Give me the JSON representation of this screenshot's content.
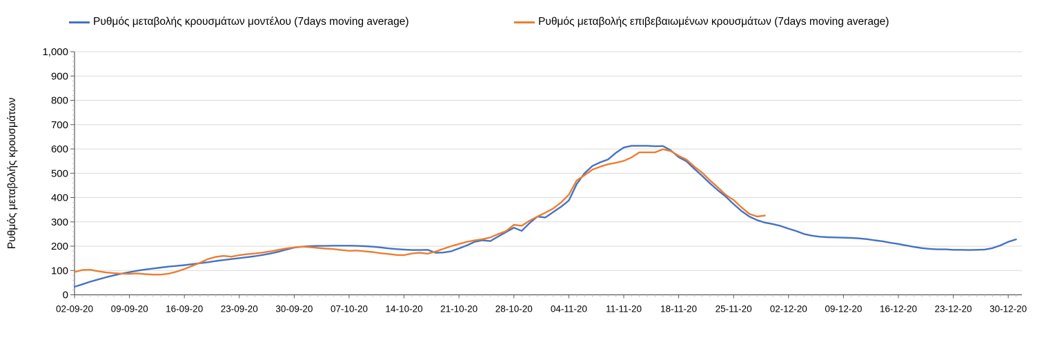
{
  "chart_data": {
    "type": "line",
    "title": "",
    "xlabel": "",
    "ylabel": "Ρυθμός μεταβολής κρουσμάτων",
    "ylim": [
      0,
      1000
    ],
    "grid": "horizontal",
    "legend_position": "top",
    "x_frequency": "daily",
    "x_start_date": "02-09-20",
    "x_tick_labels": [
      "02-09-20",
      "09-09-20",
      "16-09-20",
      "23-09-20",
      "30-09-20",
      "07-10-20",
      "14-10-20",
      "21-10-20",
      "28-10-20",
      "04-11-20",
      "11-11-20",
      "18-11-20",
      "25-11-20",
      "02-12-20",
      "09-12-20",
      "16-12-20",
      "23-12-20",
      "30-12-20"
    ],
    "x_ticks_every_days": 7,
    "y_tick_values": [
      0,
      100,
      200,
      300,
      400,
      500,
      600,
      700,
      800,
      900,
      1000
    ],
    "y_tick_labels": [
      "0",
      "100",
      "200",
      "300",
      "400",
      "500",
      "600",
      "700",
      "800",
      "900",
      "1,000"
    ],
    "series": [
      {
        "name": "Ρυθμός μεταβολής κρουσμάτων μοντέλου (7days moving average)",
        "color": "#4472C4",
        "start_date": "02-09-20",
        "end_date": "31-12-20",
        "values": [
          33,
          43,
          54,
          63,
          72,
          80,
          87,
          93,
          99,
          104,
          108,
          112,
          116,
          119,
          122,
          126,
          130,
          134,
          139,
          143,
          147,
          151,
          155,
          159,
          164,
          170,
          177,
          186,
          194,
          198,
          200,
          201,
          201,
          202,
          202,
          202,
          201,
          200,
          198,
          195,
          191,
          188,
          186,
          184,
          184,
          185,
          173,
          174,
          179,
          191,
          203,
          218,
          224,
          221,
          240,
          258,
          276,
          263,
          295,
          322,
          318,
          340,
          362,
          388,
          455,
          500,
          530,
          545,
          557,
          584,
          606,
          613,
          613,
          613,
          611,
          612,
          594,
          566,
          549,
          518,
          489,
          458,
          430,
          404,
          373,
          345,
          322,
          307,
          297,
          291,
          283,
          272,
          262,
          250,
          243,
          239,
          237,
          236,
          235,
          234,
          232,
          229,
          224,
          220,
          214,
          209,
          203,
          197,
          192,
          189,
          187,
          187,
          185,
          185,
          184,
          185,
          186,
          192,
          203,
          218,
          228
        ]
      },
      {
        "name": "Ρυθμός μεταβολής επιβεβαιωμένων κρουσμάτων (7days moving average)",
        "color": "#ED7D31",
        "start_date": "02-09-20",
        "end_date": "29-11-20",
        "values": [
          94,
          102,
          103,
          97,
          92,
          89,
          87,
          86,
          88,
          85,
          83,
          83,
          87,
          95,
          106,
          119,
          132,
          147,
          156,
          160,
          157,
          163,
          167,
          170,
          174,
          179,
          185,
          191,
          195,
          198,
          196,
          193,
          190,
          188,
          184,
          181,
          182,
          179,
          176,
          171,
          168,
          164,
          163,
          170,
          173,
          169,
          178,
          189,
          200,
          209,
          218,
          224,
          229,
          236,
          250,
          262,
          288,
          284,
          305,
          322,
          338,
          355,
          380,
          412,
          470,
          492,
          515,
          527,
          537,
          543,
          551,
          565,
          586,
          586,
          586,
          599,
          591,
          572,
          556,
          527,
          502,
          470,
          442,
          411,
          390,
          360,
          333,
          322,
          326
        ]
      }
    ]
  }
}
